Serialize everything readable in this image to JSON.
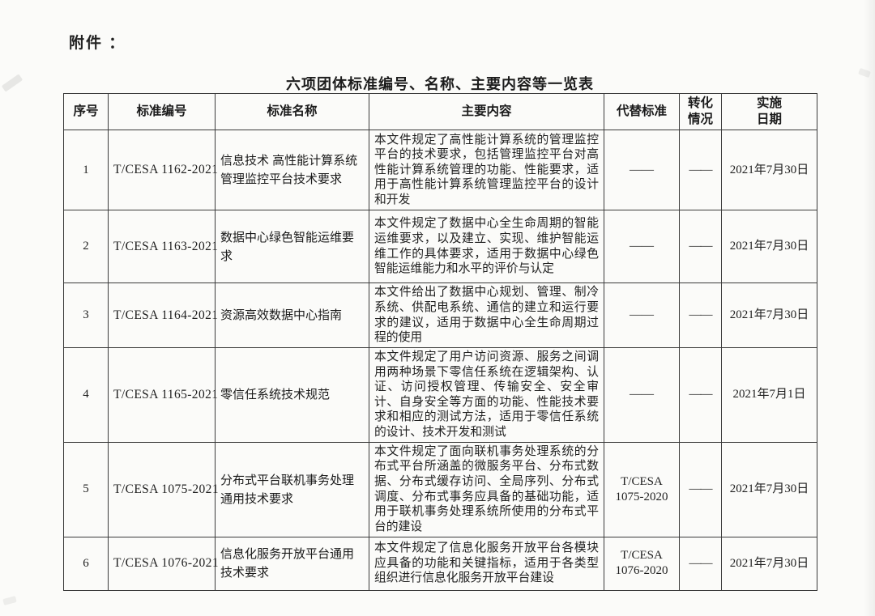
{
  "page": {
    "attachment_label": "附件 ：",
    "title": "六项团体标准编号、名称、主要内容等一览表"
  },
  "table": {
    "headers": [
      "序号",
      "标准编号",
      "标准名称",
      "主要内容",
      "代替标准",
      "转化\n情况",
      "实施\n日期"
    ],
    "rows": [
      {
        "no": "1",
        "code": "T/CESA 1162-2021",
        "name": "信息技术 高性能计算系统管理监控平台技术要求",
        "content": "本文件规定了高性能计算系统的管理监控平台的技术要求，包括管理监控平台对高性能计算系统管理的功能、性能要求，适用于高性能计算系统管理监控平台的设计和开发",
        "replaced": "——",
        "conversion": "——",
        "date": "2021年7月30日"
      },
      {
        "no": "2",
        "code": "T/CESA 1163-2021",
        "name": "数据中心绿色智能运维要求",
        "content": "本文件规定了数据中心全生命周期的智能运维要求，以及建立、实现、维护智能运维工作的具体要求，适用于数据中心绿色智能运维能力和水平的评价与认定",
        "replaced": "——",
        "conversion": "——",
        "date": "2021年7月30日"
      },
      {
        "no": "3",
        "code": "T/CESA 1164-2021",
        "name": "资源高效数据中心指南",
        "content": "本文件给出了数据中心规划、管理、制冷系统、供配电系统、通信的建立和运行要求的建议，适用于数据中心全生命周期过程的使用",
        "replaced": "——",
        "conversion": "——",
        "date": "2021年7月30日"
      },
      {
        "no": "4",
        "code": "T/CESA 1165-2021",
        "name": "零信任系统技术规范",
        "content": "本文件规定了用户访问资源、服务之间调用两种场景下零信任系统在逻辑架构、认证、访问授权管理、传输安全、安全审计、自身安全等方面的功能、性能技术要求和相应的测试方法，适用于零信任系统的设计、技术开发和测试",
        "replaced": "——",
        "conversion": "——",
        "date": "2021年7月1日"
      },
      {
        "no": "5",
        "code": "T/CESA 1075-2021",
        "name": "分布式平台联机事务处理通用技术要求",
        "content": "本文件规定了面向联机事务处理系统的分布式平台所涵盖的微服务平台、分布式数据、分布式缓存访问、全局序列、分布式调度、分布式事务应具备的基础功能，适用于联机事务处理系统所使用的分布式平台的建设",
        "replaced": "T/CESA 1075-2020",
        "conversion": "——",
        "date": "2021年7月30日"
      },
      {
        "no": "6",
        "code": "T/CESA 1076-2021",
        "name": "信息化服务开放平台通用技术要求",
        "content": "本文件规定了信息化服务开放平台各模块应具备的功能和关键指标，适用于各类型组织进行信息化服务开放平台建设",
        "replaced": "T/CESA 1076-2020",
        "conversion": "——",
        "date": "2021年7月30日"
      }
    ]
  }
}
